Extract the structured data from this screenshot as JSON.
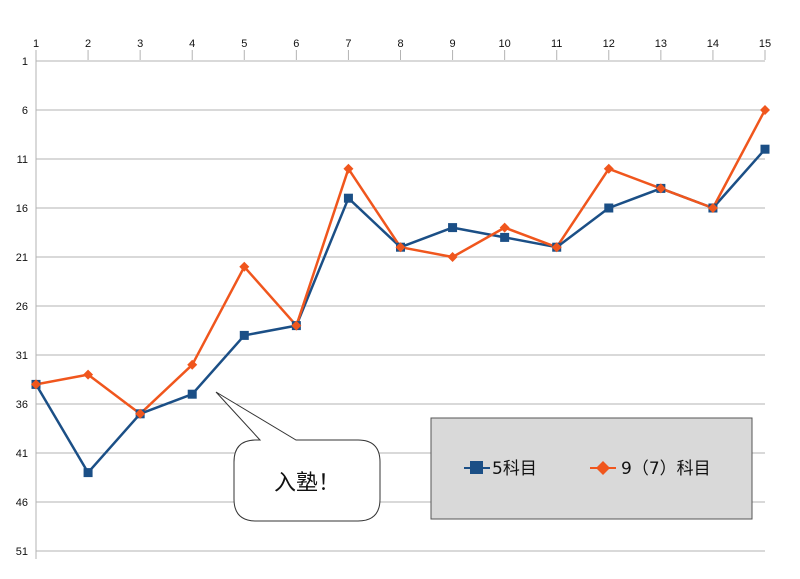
{
  "chart_data": {
    "type": "line",
    "title": "",
    "xlabel": "",
    "ylabel": "",
    "x": [
      1,
      2,
      3,
      4,
      5,
      6,
      7,
      8,
      9,
      10,
      11,
      12,
      13,
      14,
      15
    ],
    "x_tick_labels": [
      "1",
      "2",
      "3",
      "4",
      "5",
      "6",
      "7",
      "8",
      "9",
      "10",
      "11",
      "12",
      "13",
      "14",
      "15"
    ],
    "y_tick_labels": [
      "1",
      "6",
      "11",
      "16",
      "21",
      "26",
      "31",
      "36",
      "41",
      "46",
      "51"
    ],
    "y_ticks": [
      1,
      6,
      11,
      16,
      21,
      26,
      31,
      36,
      41,
      46,
      51
    ],
    "ylim": [
      1,
      51
    ],
    "y_inverted": true,
    "x_axis_position": "top",
    "grid": true,
    "legend_position": "bottom-right",
    "series": [
      {
        "name": "5科目",
        "color": "#1b4f86",
        "marker": "square",
        "values": [
          34,
          43,
          37,
          35,
          29,
          28,
          15,
          20,
          18,
          19,
          20,
          16,
          14,
          16,
          10
        ]
      },
      {
        "name": "9（7）科目",
        "color": "#f0561d",
        "marker": "diamond",
        "values": [
          34,
          33,
          37,
          32,
          22,
          28,
          12,
          20,
          21,
          18,
          20,
          12,
          14,
          16,
          6
        ]
      }
    ],
    "annotations": [
      {
        "text": "入塾！",
        "points_to": {
          "series": 0,
          "x": 4
        }
      }
    ]
  }
}
